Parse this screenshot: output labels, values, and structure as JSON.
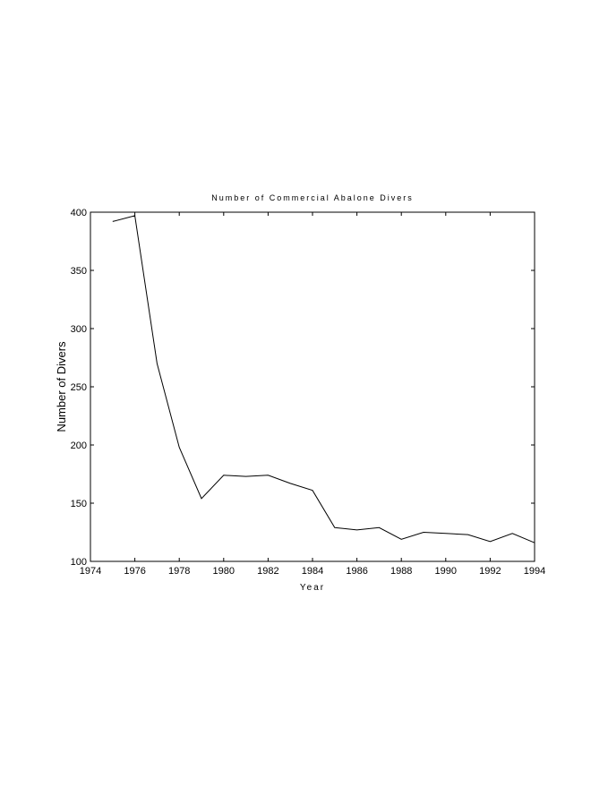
{
  "chart_data": {
    "type": "line",
    "title": "Number of Commercial Abalone Divers",
    "xlabel": "Year",
    "ylabel": "Number of Divers",
    "xlim": [
      1974,
      1994
    ],
    "ylim": [
      100,
      400
    ],
    "xticks": [
      1974,
      1976,
      1978,
      1980,
      1982,
      1984,
      1986,
      1988,
      1990,
      1992,
      1994
    ],
    "yticks": [
      100,
      150,
      200,
      250,
      300,
      350,
      400
    ],
    "grid": false,
    "series": [
      {
        "x": [
          1975,
          1976,
          1977,
          1978,
          1979,
          1980,
          1981,
          1982,
          1983,
          1984,
          1985,
          1986,
          1987,
          1988,
          1989,
          1990,
          1991,
          1992,
          1993,
          1994
        ],
        "values": [
          392,
          397,
          270,
          198,
          154,
          174,
          173,
          174,
          167,
          161,
          129,
          127,
          129,
          119,
          125,
          124,
          123,
          117,
          124,
          116
        ]
      }
    ]
  }
}
